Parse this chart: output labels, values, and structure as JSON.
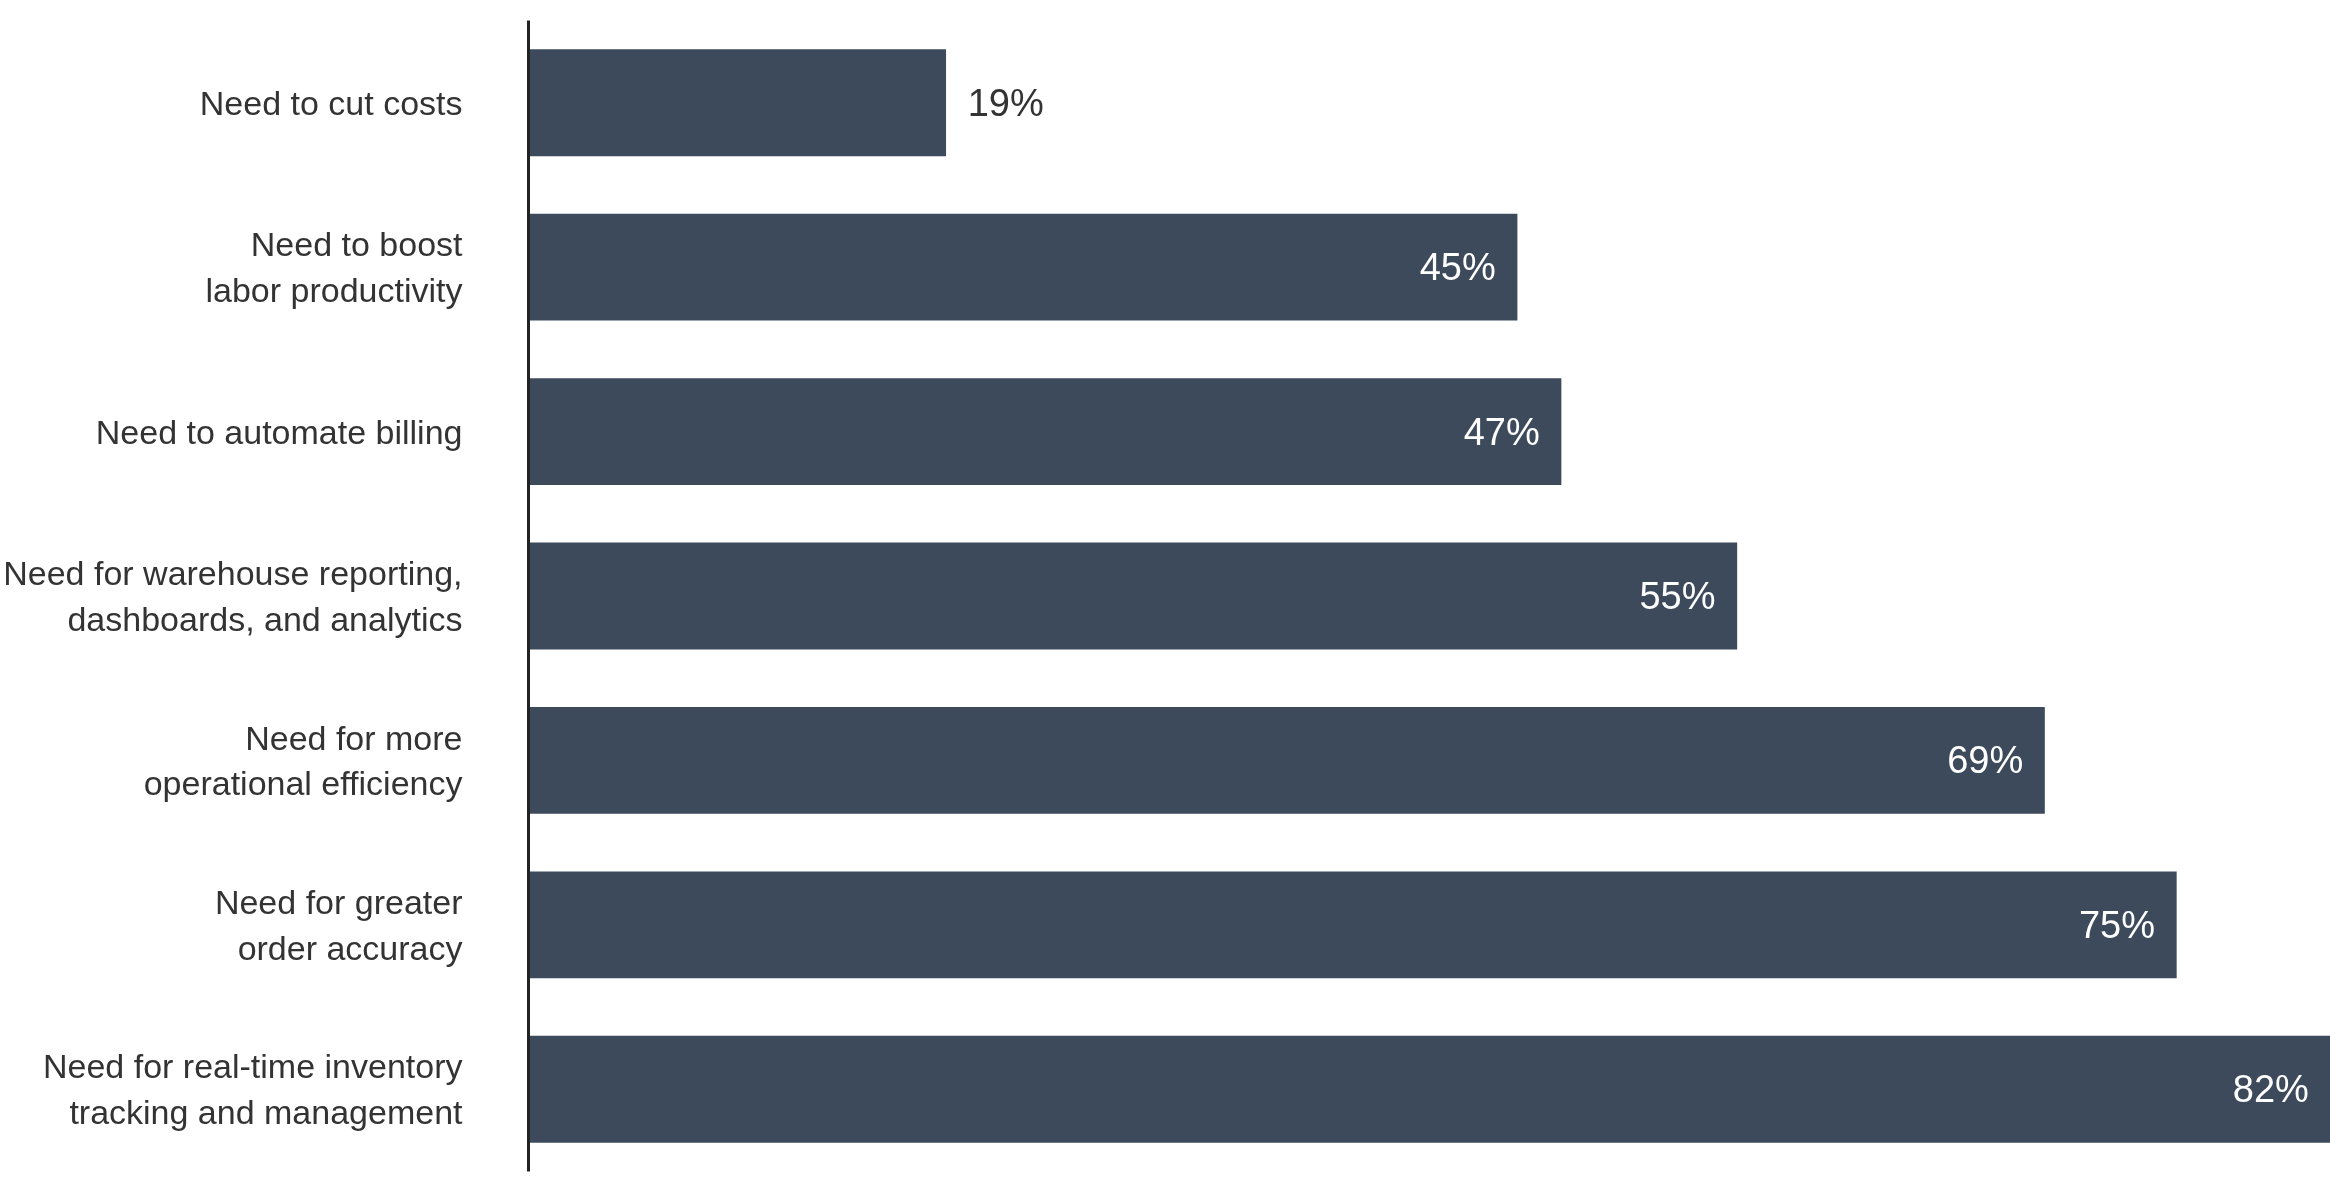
{
  "chart_data": {
    "type": "bar",
    "orientation": "horizontal",
    "categories": [
      "Need to cut costs",
      "Need to boost\nlabor productivity",
      "Need to automate billing",
      "Need for warehouse reporting,\ndashboards, and analytics",
      "Need for more\noperational efficiency",
      "Need for greater\norder accuracy",
      "Need for real-time inventory\ntracking and management"
    ],
    "values": [
      19,
      45,
      47,
      55,
      69,
      75,
      82
    ],
    "value_labels": [
      "19%",
      "45%",
      "47%",
      "55%",
      "69%",
      "75%",
      "82%"
    ],
    "color": "#3d4a5c"
  }
}
